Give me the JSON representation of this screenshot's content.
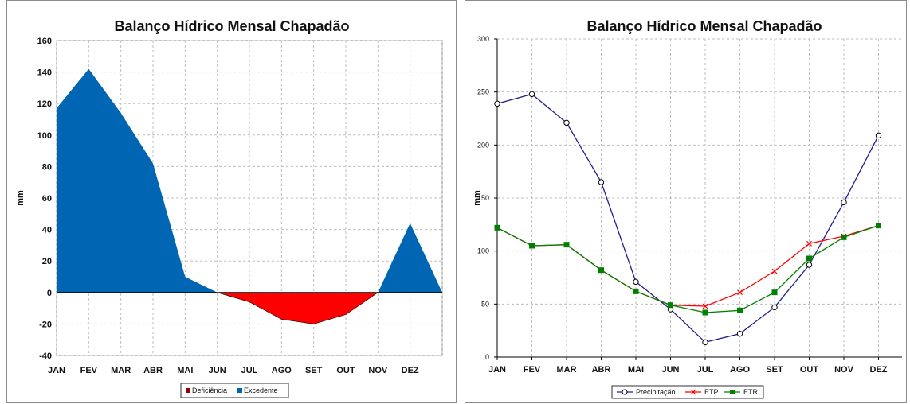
{
  "chart_data": [
    {
      "type": "area",
      "title": "Balanço Hídrico Mensal Chapadão",
      "xlabel": "",
      "ylabel": "mm",
      "ylim": [
        -40,
        160
      ],
      "yticks": [
        -40,
        -20,
        0,
        20,
        40,
        60,
        80,
        100,
        120,
        140,
        160
      ],
      "categories": [
        "JAN",
        "FEV",
        "MAR",
        "ABR",
        "MAI",
        "JUN",
        "JUL",
        "AGO",
        "SET",
        "OUT",
        "NOV",
        "DEZ"
      ],
      "grid": true,
      "legend_position": "bottom",
      "series": [
        {
          "name": "Deficiência",
          "color": "#ff0000",
          "values": [
            0,
            0,
            0,
            0,
            0,
            0,
            -6,
            -17,
            -20,
            -14,
            0,
            0
          ]
        },
        {
          "name": "Excedente",
          "color": "#0066b3",
          "values": [
            117,
            142,
            114,
            82,
            10,
            0,
            0,
            0,
            0,
            0,
            0,
            44
          ]
        }
      ],
      "legend_marker_colors": {
        "Deficiência": "#990000",
        "Excedente": "#0066b3"
      }
    },
    {
      "type": "line",
      "title": "Balanço Hídrico Mensal Chapadão",
      "xlabel": "",
      "ylabel": "mm",
      "ylim": [
        0,
        300
      ],
      "yticks": [
        0,
        50,
        100,
        150,
        200,
        250,
        300
      ],
      "categories": [
        "JAN",
        "FEV",
        "MAR",
        "ABR",
        "MAI",
        "JUN",
        "JUL",
        "AGO",
        "SET",
        "OUT",
        "NOV",
        "DEZ"
      ],
      "grid": true,
      "legend_position": "bottom",
      "series": [
        {
          "name": "Precipitação",
          "color": "#1f1f8f",
          "marker": "circle",
          "values": [
            239,
            248,
            221,
            165,
            71,
            45,
            14,
            22,
            47,
            87,
            146,
            209
          ]
        },
        {
          "name": "ETP",
          "color": "#ff0000",
          "marker": "x",
          "values": [
            122,
            105,
            106,
            82,
            62,
            49,
            48,
            61,
            81,
            107,
            114,
            124
          ]
        },
        {
          "name": "ETR",
          "color": "#008000",
          "marker": "square",
          "values": [
            122,
            105,
            106,
            82,
            62,
            49,
            42,
            44,
            61,
            93,
            113,
            124
          ]
        }
      ]
    }
  ]
}
